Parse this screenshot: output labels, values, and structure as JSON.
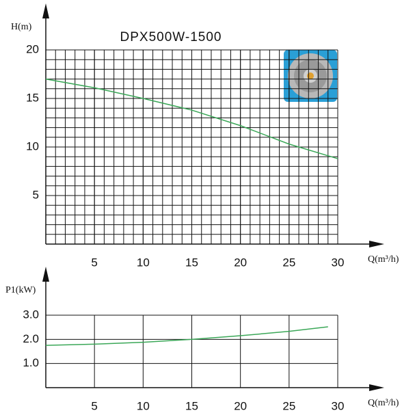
{
  "chart_data": [
    {
      "type": "line",
      "title": "DPX500W-1500",
      "y_label": "H(m)",
      "x_label": "Q(m³/h)",
      "x": [
        0,
        5,
        10,
        15,
        20,
        25,
        30
      ],
      "series": [
        {
          "name": "H",
          "color": "#3aa757",
          "values": [
            17,
            16.1,
            15,
            13.8,
            12.2,
            10.3,
            8.8
          ]
        }
      ],
      "xlim": [
        0,
        30
      ],
      "ylim": [
        0,
        20
      ],
      "xticks": [
        5,
        10,
        15,
        20,
        25,
        30
      ],
      "yticks": [
        5,
        10,
        15,
        20
      ],
      "grid": true,
      "minor_grid": true
    },
    {
      "type": "line",
      "y_label": "P1(kW)",
      "x_label": "Q(m³/h)",
      "x": [
        0,
        5,
        10,
        15,
        20,
        25,
        29
      ],
      "series": [
        {
          "name": "P1",
          "color": "#3aa757",
          "values": [
            1.75,
            1.8,
            1.88,
            2.0,
            2.15,
            2.33,
            2.52
          ]
        }
      ],
      "xlim": [
        0,
        30
      ],
      "ylim": [
        0,
        3
      ],
      "xticks": [
        5,
        10,
        15,
        20,
        25,
        30
      ],
      "yticks": [
        {
          "value": 1,
          "label": "1.0"
        },
        {
          "value": 2,
          "label": "2.0"
        },
        {
          "value": 3,
          "label": "3.0"
        }
      ],
      "grid": true,
      "minor_grid": false
    }
  ]
}
